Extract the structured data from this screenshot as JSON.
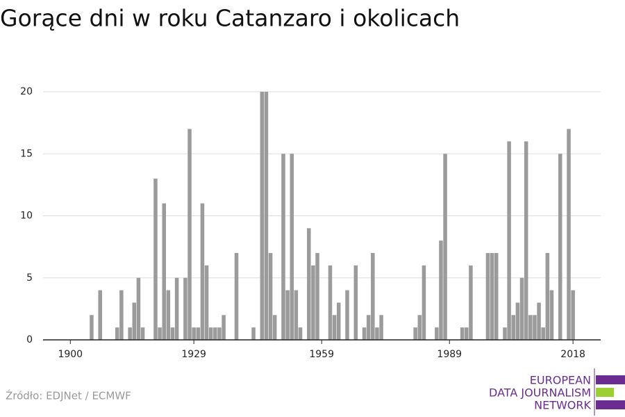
{
  "chart_data": {
    "type": "bar",
    "title": "Gorące dni w roku Catanzaro i okolicach",
    "source": "Źródło: EDJNet / ECMWF",
    "logo": [
      "EUROPEAN",
      "DATA JOURNALISM",
      "NETWORK"
    ],
    "color": "#9b9b9b",
    "x": [
      1905,
      1907,
      1911,
      1912,
      1914,
      1915,
      1916,
      1917,
      1920,
      1921,
      1922,
      1923,
      1924,
      1925,
      1927,
      1928,
      1929,
      1930,
      1931,
      1932,
      1933,
      1934,
      1935,
      1936,
      1939,
      1943,
      1945,
      1946,
      1947,
      1948,
      1950,
      1951,
      1952,
      1953,
      1954,
      1956,
      1957,
      1958,
      1961,
      1962,
      1963,
      1965,
      1967,
      1969,
      1970,
      1971,
      1972,
      1973,
      1981,
      1982,
      1983,
      1986,
      1987,
      1988,
      1992,
      1993,
      1994,
      1998,
      1999,
      2000,
      2002,
      2003,
      2004,
      2005,
      2006,
      2007,
      2008,
      2009,
      2010,
      2011,
      2012,
      2013,
      2015,
      2017,
      2018
    ],
    "values": [
      2,
      4,
      1,
      4,
      1,
      3,
      5,
      1,
      13,
      1,
      11,
      4,
      1,
      5,
      5,
      17,
      1,
      1,
      11,
      6,
      1,
      1,
      1,
      2,
      7,
      1,
      20,
      20,
      7,
      2,
      15,
      4,
      15,
      4,
      1,
      9,
      6,
      7,
      6,
      2,
      3,
      4,
      6,
      1,
      2,
      7,
      1,
      2,
      1,
      2,
      6,
      1,
      8,
      15,
      1,
      1,
      6,
      7,
      7,
      7,
      1,
      16,
      2,
      3,
      5,
      16,
      2,
      2,
      3,
      1,
      7,
      4,
      15,
      17,
      4
    ],
    "xlim": [
      1893.6,
      2024.5
    ],
    "xticks": [
      1900,
      1929,
      1959,
      1989,
      2018
    ],
    "ylim": [
      0,
      20
    ],
    "yticks": [
      0,
      5,
      10,
      15,
      20
    ],
    "grid": true
  }
}
